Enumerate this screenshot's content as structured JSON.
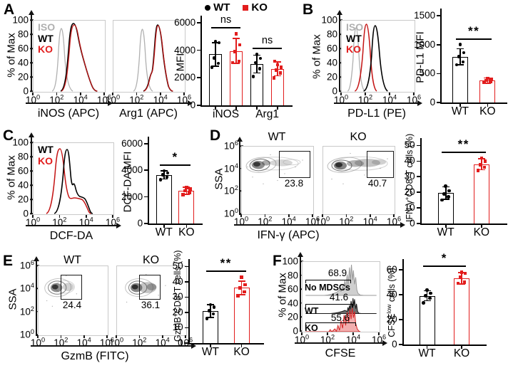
{
  "colors": {
    "wt": "#000000",
    "ko": "#e21d1d",
    "iso": "#b0b0b0",
    "no_mdscs_fill": "#cfcfcf",
    "wt_fill": "#6e6e6e",
    "ko_fill": "#f0a0a0"
  },
  "flow_axis": {
    "ylabel": "% of Max",
    "yticks": [
      "100",
      "80",
      "60",
      "40",
      "20",
      "0"
    ],
    "xticks": [
      "10^{0}",
      "10^{2}",
      "10^{4}",
      "10^{6}"
    ],
    "ssa_yticks": [
      "10^{6}",
      "10^{4}",
      "10^{2}",
      "10^{0}"
    ]
  },
  "panels": {
    "A": {
      "label": "A",
      "ylabel": "% of Max",
      "legend": [
        "ISO",
        "WT",
        "KO"
      ],
      "hist1_xlabel": "iNOS (APC)",
      "hist2_xlabel": "Arg1 (APC)"
    },
    "B": {
      "label": "B",
      "ylabel": "% of Max",
      "legend": [
        "ISO",
        "WT",
        "KO"
      ],
      "hist_xlabel": "PD-L1 (PE)"
    },
    "C": {
      "label": "C",
      "ylabel": "% of Max",
      "legend": [
        "WT",
        "KO"
      ],
      "hist_xlabel": "DCF-DA"
    },
    "D": {
      "label": "D",
      "ylabel": "SSA",
      "xlabel": "IFN-γ (APC)",
      "plots": [
        {
          "title": "WT"
        },
        {
          "title": "KO"
        }
      ]
    },
    "E": {
      "label": "E",
      "ylabel": "SSA",
      "xlabel": "GzmB (FITC)",
      "plots": [
        {
          "title": "WT"
        },
        {
          "title": "KO"
        }
      ]
    },
    "F": {
      "label": "F",
      "ylabel": "% of Max",
      "xlabel": "CFSE"
    }
  },
  "chart_data": [
    {
      "type": "line",
      "id": "A-iNOS-histogram",
      "xlabel": "iNOS (APC)",
      "ylabel": "% of Max",
      "x_scale": "log10",
      "xlim": [
        1,
        1000000
      ],
      "ylim": [
        0,
        100
      ],
      "series": [
        {
          "name": "ISO",
          "color": "#b0b0b0",
          "peak_x": 250,
          "peak_y": 92
        },
        {
          "name": "WT",
          "color": "#000000",
          "peak_x": 2500,
          "peak_y": 97
        },
        {
          "name": "KO",
          "color": "#e21d1d",
          "peak_x": 2500,
          "peak_y": 95
        }
      ]
    },
    {
      "type": "line",
      "id": "A-Arg1-histogram",
      "xlabel": "Arg1 (APC)",
      "ylabel": "% of Max",
      "x_scale": "log10",
      "xlim": [
        1,
        1000000
      ],
      "ylim": [
        0,
        100
      ],
      "series": [
        {
          "name": "ISO",
          "color": "#b0b0b0",
          "peak_x": 400,
          "peak_y": 90
        },
        {
          "name": "WT",
          "color": "#000000",
          "peak_x": 4000,
          "peak_y": 95
        },
        {
          "name": "KO",
          "color": "#e21d1d",
          "peak_x": 4000,
          "peak_y": 94
        }
      ]
    },
    {
      "type": "bar",
      "id": "A-MFI",
      "ylabel": "MFI",
      "ylim": [
        0,
        6200
      ],
      "yticks": [
        0,
        2000,
        4000,
        6000
      ],
      "legend": [
        {
          "name": "WT",
          "marker": "circle",
          "color": "#000000"
        },
        {
          "name": "KO",
          "marker": "square",
          "color": "#e21d1d"
        }
      ],
      "groups": [
        {
          "label": "iNOS",
          "bars": [
            0,
            1
          ]
        },
        {
          "label": "Arg1",
          "bars": [
            2,
            3
          ]
        }
      ],
      "bars": [
        {
          "series": "WT",
          "marker": "circle",
          "color": "#000000",
          "value": 3700,
          "err": 850,
          "points": [
            2750,
            3050,
            3450,
            4550,
            4650
          ]
        },
        {
          "series": "KO",
          "marker": "square",
          "color": "#e21d1d",
          "value": 3950,
          "err": 900,
          "points": [
            3100,
            3200,
            3900,
            4400,
            5200
          ]
        },
        {
          "series": "WT",
          "marker": "circle",
          "color": "#000000",
          "value": 3000,
          "err": 650,
          "points": [
            2100,
            2650,
            3100,
            3400,
            3700
          ]
        },
        {
          "series": "KO",
          "marker": "square",
          "color": "#e21d1d",
          "value": 2650,
          "err": 500,
          "points": [
            2000,
            2350,
            2550,
            2750,
            2950,
            3200
          ]
        }
      ],
      "sig": [
        {
          "text": "ns",
          "bars": [
            0,
            1
          ]
        },
        {
          "text": "ns",
          "bars": [
            2,
            3
          ]
        }
      ]
    },
    {
      "type": "line",
      "id": "B-PDL1-histogram",
      "xlabel": "PD-L1 (PE)",
      "ylabel": "% of Max",
      "x_scale": "log10",
      "xlim": [
        1,
        1000000
      ],
      "ylim": [
        0,
        100
      ],
      "series": [
        {
          "name": "ISO",
          "color": "#b0b0b0",
          "peak_x": 15,
          "peak_y": 93
        },
        {
          "name": "WT",
          "color": "#000000",
          "peak_x": 550,
          "peak_y": 93
        },
        {
          "name": "KO",
          "color": "#e21d1d",
          "peak_x": 120,
          "peak_y": 95
        }
      ]
    },
    {
      "type": "bar",
      "id": "B-PDL1-MFI",
      "ylabel": "PD-L1 MFI",
      "ylim": [
        0,
        1550
      ],
      "yticks": [
        0,
        500,
        1000,
        1500
      ],
      "bars": [
        {
          "label": "WT",
          "marker": "circle",
          "color": "#000000",
          "value": 790,
          "err": 140,
          "points": [
            650,
            700,
            790,
            860,
            1000
          ]
        },
        {
          "label": "KO",
          "marker": "square",
          "color": "#e21d1d",
          "value": 380,
          "err": 45,
          "points": [
            345,
            365,
            380,
            400,
            420
          ]
        }
      ],
      "sig": [
        {
          "text": "**",
          "bars": [
            0,
            1
          ]
        }
      ]
    },
    {
      "type": "line",
      "id": "C-DCFDA-histogram",
      "xlabel": "DCF-DA",
      "ylabel": "% of Max",
      "x_scale": "log10",
      "xlim": [
        1,
        1000000
      ],
      "ylim": [
        0,
        100
      ],
      "series": [
        {
          "name": "WT",
          "color": "#000000",
          "peak_x": 300,
          "peak_y": 91
        },
        {
          "name": "KO",
          "color": "#e21d1d",
          "peak_x": 110,
          "peak_y": 92
        }
      ]
    },
    {
      "type": "bar",
      "id": "C-DCFDA-MFI",
      "ylabel": "DCF-DA MFI",
      "ylim": [
        0,
        6200
      ],
      "yticks": [
        0,
        2000,
        4000,
        6000
      ],
      "bars": [
        {
          "label": "WT",
          "marker": "circle",
          "color": "#000000",
          "value": 3650,
          "err": 300,
          "points": [
            3300,
            3500,
            3650,
            3800,
            3950
          ]
        },
        {
          "label": "KO",
          "marker": "square",
          "color": "#e21d1d",
          "value": 2450,
          "err": 270,
          "points": [
            2150,
            2300,
            2450,
            2600,
            2700
          ]
        }
      ],
      "sig": [
        {
          "text": "*",
          "bars": [
            0,
            1
          ]
        }
      ]
    },
    {
      "type": "contour",
      "id": "D-WT",
      "title": "WT",
      "xlabel": "IFN-γ (APC)",
      "ylabel": "SSA",
      "gate_pct": 23.8
    },
    {
      "type": "contour",
      "id": "D-KO",
      "title": "KO",
      "xlabel": "IFN-γ (APC)",
      "ylabel": "SSA",
      "gate_pct": 40.7
    },
    {
      "type": "bar",
      "id": "D-IFNg-cells",
      "ylabel": "IFN-γ^{+}CD8^{+}T cells (%)",
      "ylim": [
        0,
        52
      ],
      "yticks": [
        0,
        10,
        20,
        30,
        40,
        50
      ],
      "bars": [
        {
          "label": "WT",
          "marker": "circle",
          "color": "#000000",
          "value": 19.5,
          "err": 4,
          "points": [
            15,
            17,
            19,
            21,
            24
          ]
        },
        {
          "label": "KO",
          "marker": "square",
          "color": "#e21d1d",
          "value": 38,
          "err": 3.5,
          "points": [
            34,
            36,
            37.5,
            40,
            42
          ]
        }
      ],
      "sig": [
        {
          "text": "**",
          "bars": [
            0,
            1
          ]
        }
      ]
    },
    {
      "type": "contour",
      "id": "E-WT",
      "title": "WT",
      "xlabel": "GzmB (FITC)",
      "ylabel": "SSA",
      "gate_pct": 24.4
    },
    {
      "type": "contour",
      "id": "E-KO",
      "title": "KO",
      "xlabel": "GzmB (FITC)",
      "ylabel": "SSA",
      "gate_pct": 36.1
    },
    {
      "type": "bar",
      "id": "E-GzmB-cells",
      "ylabel": "GzmB^{+}CD8^{+}T cells (%)",
      "ylim": [
        0,
        52
      ],
      "yticks": [
        0,
        10,
        20,
        30,
        40,
        50
      ],
      "bars": [
        {
          "label": "WT",
          "marker": "circle",
          "color": "#000000",
          "value": 21,
          "err": 4.2,
          "points": [
            16,
            19,
            21,
            23.5,
            25
          ]
        },
        {
          "label": "KO",
          "marker": "square",
          "color": "#e21d1d",
          "value": 36,
          "err": 4.5,
          "points": [
            31,
            33.5,
            36,
            38,
            43
          ]
        }
      ],
      "sig": [
        {
          "text": "**",
          "bars": [
            0,
            1
          ]
        }
      ]
    },
    {
      "type": "histogram-overlay",
      "id": "F-CFSE",
      "xlabel": "CFSE",
      "ylabel": "% of Max",
      "x_scale": "log10",
      "xlim": [
        1,
        1000000
      ],
      "series": [
        {
          "name": "No MDSCs",
          "gate_pct": 68.9,
          "color": "#cfcfcf"
        },
        {
          "name": "WT",
          "gate_pct": 41.6,
          "color": "#6e6e6e"
        },
        {
          "name": "KO",
          "gate_pct": 55.6,
          "color": "#f0a0a0"
        }
      ]
    },
    {
      "type": "bar",
      "id": "F-CFSElow",
      "ylabel": "CFSE^{low} cells (%)",
      "ylim": [
        0,
        65
      ],
      "yticks": [
        0,
        20,
        40,
        60
      ],
      "bars": [
        {
          "label": "WT",
          "marker": "circle",
          "color": "#000000",
          "value": 39,
          "err": 4,
          "points": [
            33.5,
            37,
            39,
            41,
            43.5
          ]
        },
        {
          "label": "KO",
          "marker": "square",
          "color": "#e21d1d",
          "value": 53,
          "err": 4.5,
          "points": [
            49,
            50,
            54,
            57,
            58
          ]
        }
      ],
      "sig": [
        {
          "text": "*",
          "bars": [
            0,
            1
          ]
        }
      ]
    }
  ]
}
